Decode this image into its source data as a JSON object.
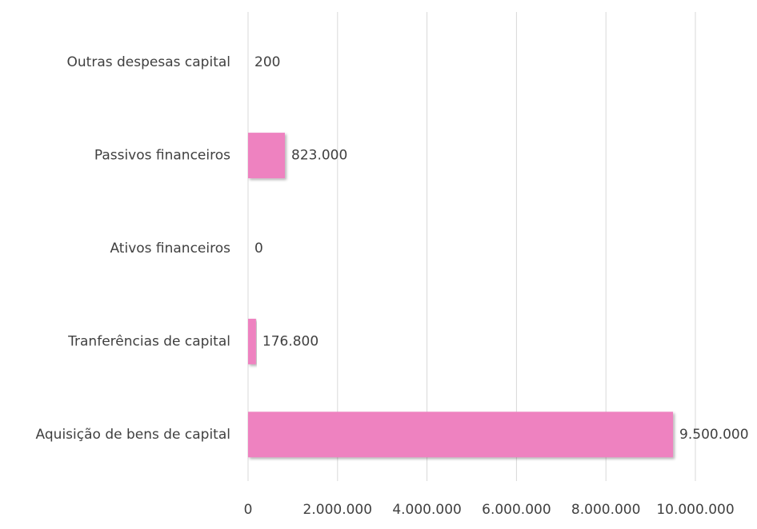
{
  "chart_data": {
    "type": "bar",
    "orientation": "horizontal",
    "categories": [
      "Outras despesas capital",
      "Passivos financeiros",
      "Ativos financeiros",
      "Tranferências de capital",
      "Aquisição de bens de capital"
    ],
    "values": [
      200,
      823000,
      0,
      176800,
      9500000
    ],
    "value_labels": [
      "200",
      "823.000",
      "0",
      "176.800",
      "9.500.000"
    ],
    "color": "#ee82c0",
    "xlim": [
      0,
      10000000
    ],
    "xticks": [
      0,
      {
        "value": 2000000,
        "label": "2.000.000"
      },
      {
        "value": 4000000,
        "label": "4.000.000"
      },
      {
        "value": 6000000,
        "label": "6.000.000"
      },
      {
        "value": 8000000,
        "label": "8.000.000"
      },
      {
        "value": 10000000,
        "label": "10.000.000"
      }
    ],
    "grid": true
  }
}
